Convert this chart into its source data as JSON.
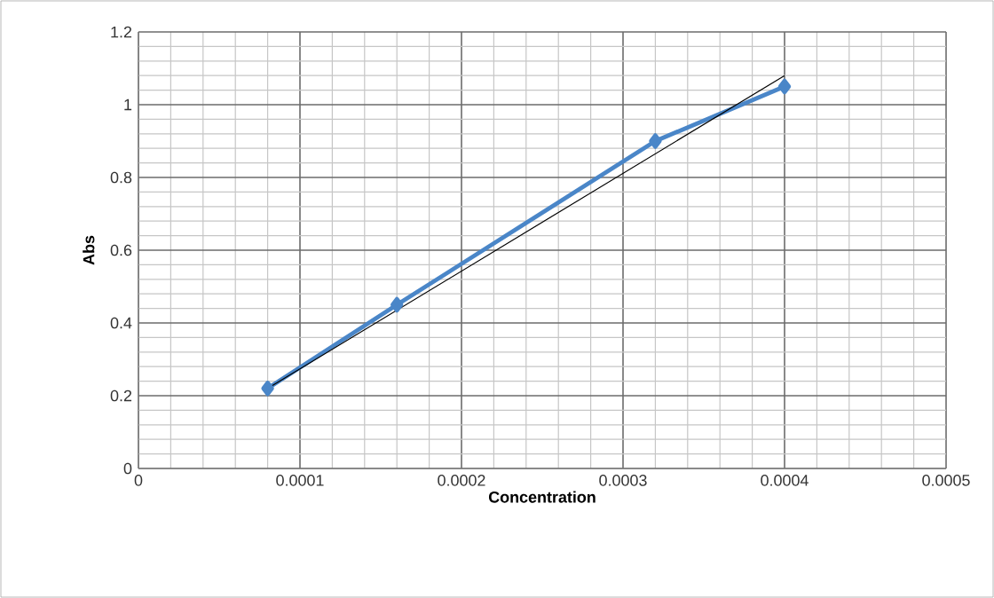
{
  "chart_data": {
    "type": "line",
    "xlabel": "Concentration",
    "ylabel": "Abs",
    "xlim": [
      0,
      0.0005
    ],
    "xticks": [
      0,
      0.0001,
      0.0002,
      0.0003,
      0.0004,
      0.0005
    ],
    "ylim": [
      0,
      1.2
    ],
    "yticks": [
      0,
      0.2,
      0.4,
      0.6,
      0.8,
      1,
      1.2
    ],
    "grid": true,
    "marker": "diamond",
    "line_style": "solid",
    "series": [
      {
        "color": "#4a86c8",
        "x": [
          8e-05,
          0.00016,
          0.00032,
          0.0004
        ],
        "values": [
          0.22,
          0.45,
          0.9,
          1.05
        ]
      },
      {
        "color": "#000000",
        "marker": "none",
        "x": [
          8e-05,
          0.0004
        ],
        "values": [
          0.22,
          1.08
        ]
      }
    ]
  }
}
